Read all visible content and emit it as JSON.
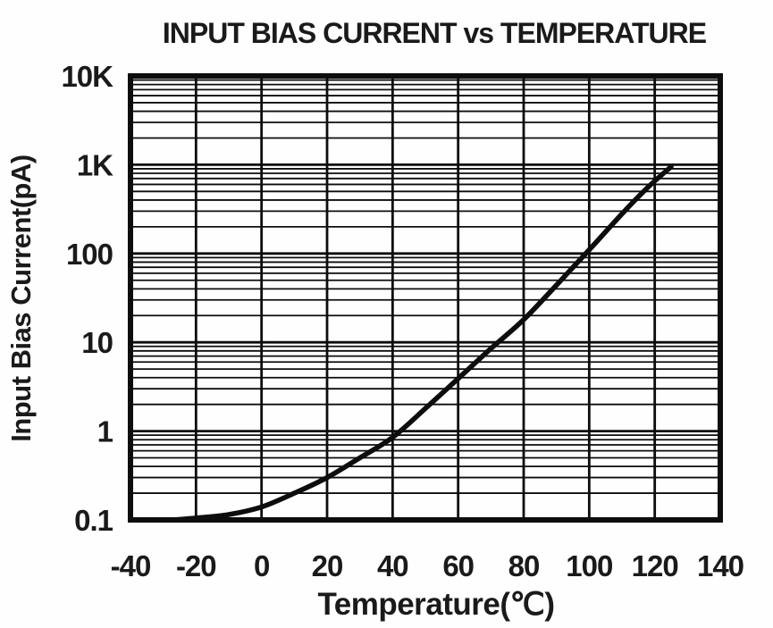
{
  "chart_data": {
    "type": "line",
    "title": "INPUT BIAS CURRENT vs TEMPERATURE",
    "xlabel": "Temperature(℃)",
    "ylabel": "Input Bias Current(pA)",
    "x_scale": "linear",
    "y_scale": "log",
    "xlim": [
      -40,
      140
    ],
    "ylim": [
      0.1,
      10000
    ],
    "x_ticks": [
      -40,
      -20,
      0,
      20,
      40,
      60,
      80,
      100,
      120,
      140
    ],
    "x_tick_labels": [
      "-40",
      "-20",
      "0",
      "20",
      "40",
      "60",
      "80",
      "100",
      "120",
      "140"
    ],
    "y_ticks": [
      0.1,
      1,
      10,
      100,
      1000,
      10000
    ],
    "y_tick_labels": [
      "0.1",
      "1",
      "10",
      "100",
      "1K",
      "10K"
    ],
    "grid": {
      "vertical_major_step": 20,
      "horizontal_log_minors": [
        2,
        3,
        4,
        5,
        6,
        7,
        8,
        9
      ],
      "frame": true
    },
    "legend": "none",
    "series": [
      {
        "name": "input-bias-current",
        "color": "#0d0d0d",
        "points": [
          [
            -27,
            0.1
          ],
          [
            -20,
            0.105
          ],
          [
            -10,
            0.115
          ],
          [
            0,
            0.14
          ],
          [
            10,
            0.2
          ],
          [
            20,
            0.3
          ],
          [
            30,
            0.5
          ],
          [
            40,
            0.85
          ],
          [
            50,
            1.8
          ],
          [
            60,
            3.9
          ],
          [
            70,
            8.5
          ],
          [
            80,
            18
          ],
          [
            90,
            44
          ],
          [
            100,
            110
          ],
          [
            110,
            280
          ],
          [
            118,
            560
          ],
          [
            125,
            950
          ]
        ]
      }
    ],
    "colors": {
      "ink": "#0d0d0d",
      "text": "#1a1a1a",
      "background": "#fefefe"
    }
  }
}
